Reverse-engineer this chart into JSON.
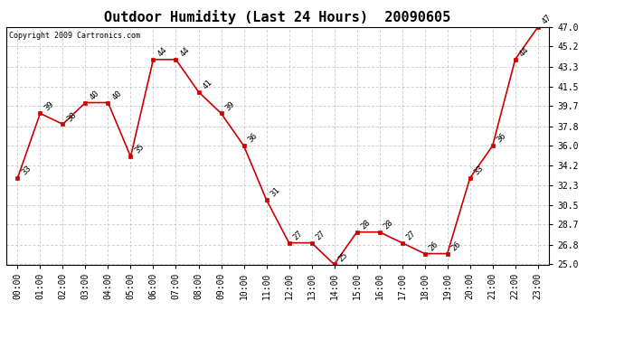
{
  "title": "Outdoor Humidity (Last 24 Hours)  20090605",
  "copyright": "Copyright 2009 Cartronics.com",
  "hours": [
    "00:00",
    "01:00",
    "02:00",
    "03:00",
    "04:00",
    "05:00",
    "06:00",
    "07:00",
    "08:00",
    "09:00",
    "10:00",
    "11:00",
    "12:00",
    "13:00",
    "14:00",
    "15:00",
    "16:00",
    "17:00",
    "18:00",
    "19:00",
    "20:00",
    "21:00",
    "22:00",
    "23:00"
  ],
  "values": [
    33,
    39,
    38,
    40,
    40,
    35,
    44,
    44,
    41,
    39,
    36,
    31,
    27,
    27,
    25,
    28,
    28,
    27,
    26,
    26,
    33,
    36,
    44,
    47
  ],
  "ylim_min": 25.0,
  "ylim_max": 47.0,
  "yticks": [
    25.0,
    26.8,
    28.7,
    30.5,
    32.3,
    34.2,
    36.0,
    37.8,
    39.7,
    41.5,
    43.3,
    45.2,
    47.0
  ],
  "line_color": "#cc0000",
  "marker_color": "#cc0000",
  "bg_color": "#ffffff",
  "plot_bg_color": "#ffffff",
  "grid_color": "#bbbbbb",
  "title_fontsize": 11,
  "copyright_fontsize": 6,
  "label_fontsize": 6.5,
  "tick_fontsize": 7,
  "ytick_fontsize": 7
}
